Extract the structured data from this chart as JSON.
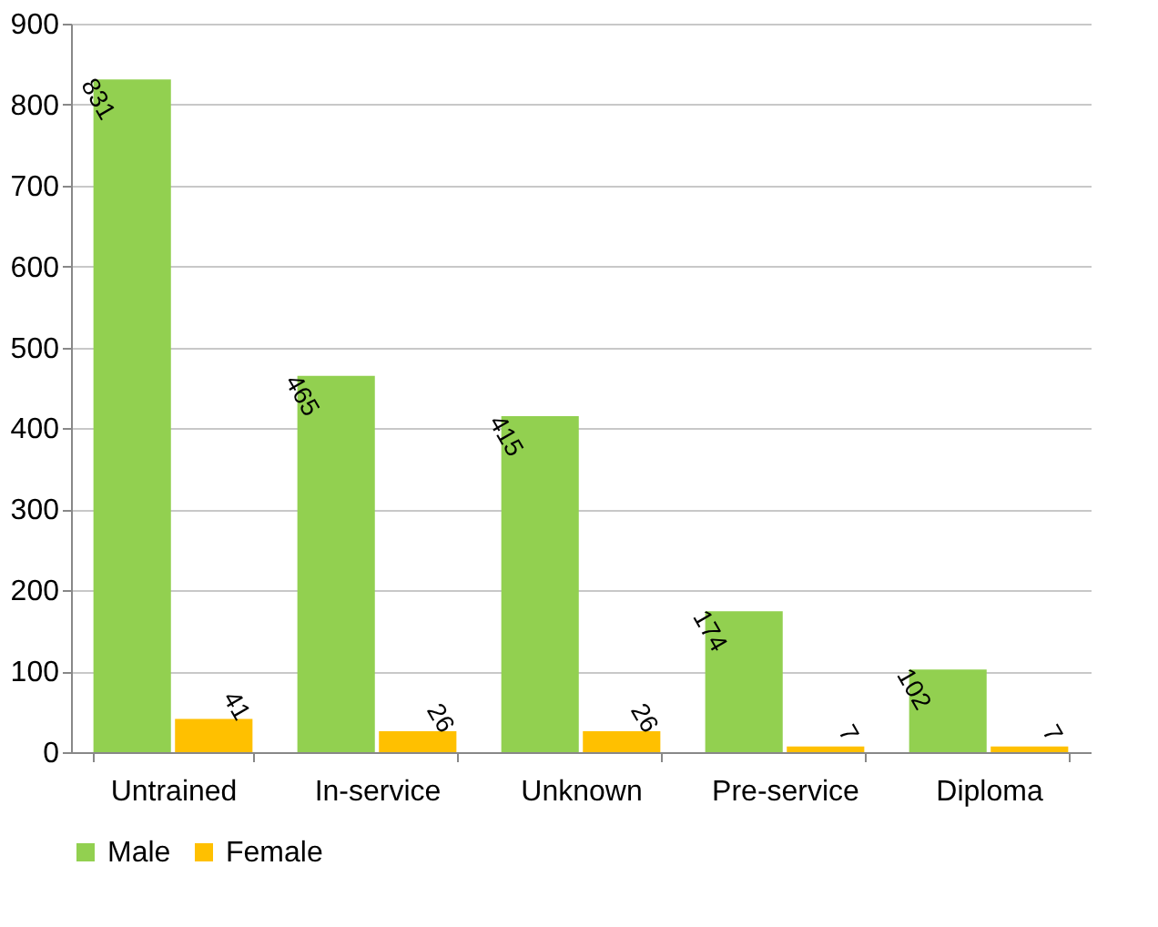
{
  "chart_data": {
    "type": "bar",
    "categories": [
      "Untrained",
      "In-service",
      "Unknown",
      "Pre-service",
      "Diploma"
    ],
    "series": [
      {
        "name": "Male",
        "color": "#92d050",
        "values": [
          831,
          465,
          415,
          174,
          102
        ]
      },
      {
        "name": "Female",
        "color": "#ffc000",
        "values": [
          41,
          26,
          26,
          7,
          7
        ]
      }
    ],
    "ylim": [
      0,
      900
    ],
    "yticks": [
      0,
      100,
      200,
      300,
      400,
      500,
      600,
      700,
      800,
      900
    ],
    "grid": "y",
    "legend": "bottom",
    "data_labels": true
  }
}
